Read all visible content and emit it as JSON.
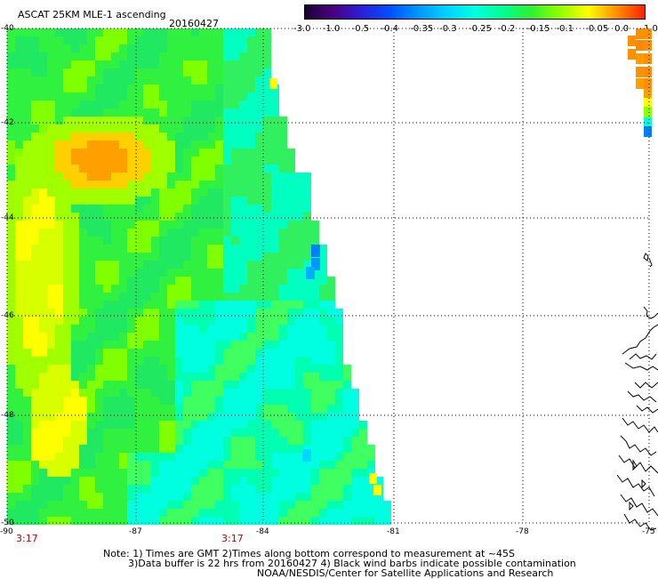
{
  "header": {
    "product": "ASCAT 25KM MLE-1 ascending",
    "date": "20160427"
  },
  "colorbar": {
    "labels": [
      "-3.0",
      "-1.0",
      "-0.5",
      "-0.4",
      "-0.35",
      "-0.3",
      "-0.25",
      "-0.2",
      "-0.15",
      "-0.1",
      "-0.05",
      "0.0",
      "1.0"
    ],
    "colors": [
      "#1a0033",
      "#4b0082",
      "#2a1fd6",
      "#0050ff",
      "#0096ff",
      "#00d2ff",
      "#00ffe0",
      "#00ff90",
      "#30f030",
      "#90ff00",
      "#ffff00",
      "#ff9000",
      "#ff2000"
    ]
  },
  "axes": {
    "y_labels": [
      "-40",
      "-42",
      "-44",
      "-46",
      "-48",
      "-50"
    ],
    "x_labels": [
      "-90",
      "-87",
      "-84",
      "-81",
      "-78",
      "-75"
    ]
  },
  "time_marks": [
    "3:17",
    "3:17"
  ],
  "notes": {
    "line1": "Note: 1) Times are GMT 2)Times along bottom correspond to measurement at ~45S",
    "line2": "3)Data buffer is 22 hrs from 20160427 4) Black wind barbs indicate possible contamination",
    "line3": "NOAA/NESDIS/Center for Satellite Applications and Research"
  }
}
